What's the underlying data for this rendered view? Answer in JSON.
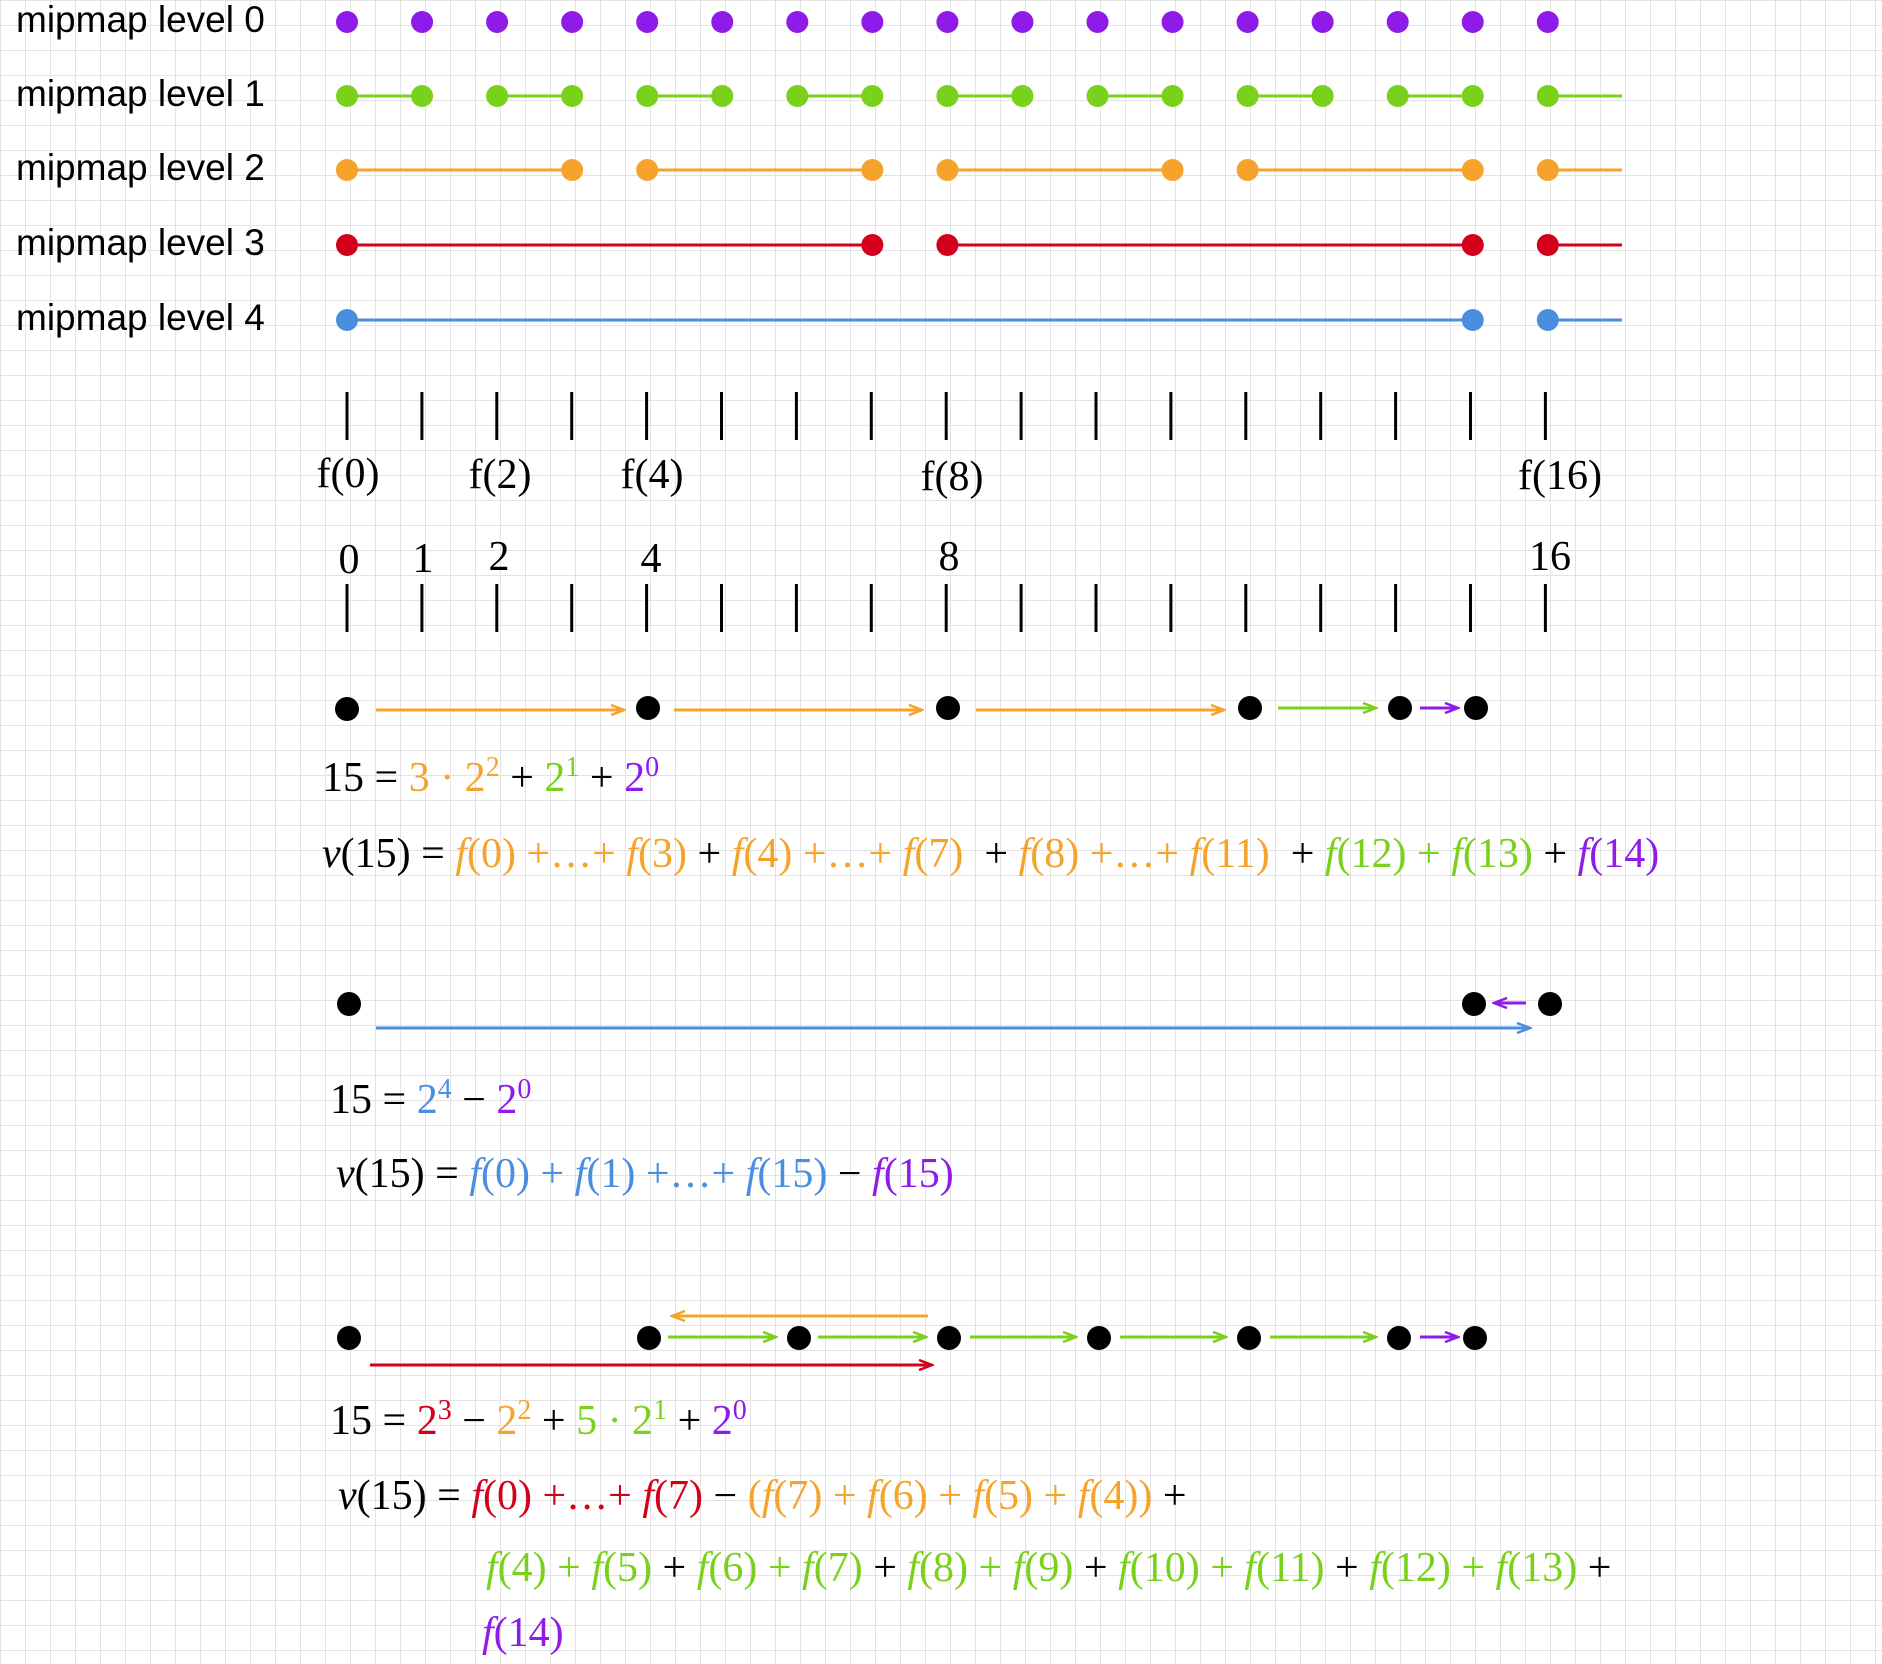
{
  "colors": {
    "purple": "#8f1be8",
    "green": "#79d11b",
    "orange": "#f5a32b",
    "red": "#d4001b",
    "blue": "#4a8ee0",
    "black": "#000000",
    "grid": "#e3e3e3"
  },
  "mipmap_levels": [
    {
      "label": "mipmap level 0",
      "color": "purple"
    },
    {
      "label": "mipmap level 1",
      "color": "green"
    },
    {
      "label": "mipmap level 2",
      "color": "orange"
    },
    {
      "label": "mipmap level 3",
      "color": "red"
    },
    {
      "label": "mipmap level 4",
      "color": "blue"
    }
  ],
  "function_labels": [
    "f(0)",
    "f(2)",
    "f(4)",
    "f(8)",
    "f(16)"
  ],
  "index_labels": [
    "0",
    "1",
    "2",
    "4",
    "8",
    "16"
  ],
  "decompositions": [
    {
      "eq1": [
        {
          "t": "15 = ",
          "c": "black"
        },
        {
          "t": "3 · 2",
          "c": "orange"
        },
        {
          "t": "2",
          "c": "orange",
          "sup": true
        },
        {
          "t": " + ",
          "c": "black"
        },
        {
          "t": "2",
          "c": "green"
        },
        {
          "t": "1",
          "c": "green",
          "sup": true
        },
        {
          "t": " + ",
          "c": "black"
        },
        {
          "t": "2",
          "c": "purple"
        },
        {
          "t": "0",
          "c": "purple",
          "sup": true
        }
      ],
      "eq2": [
        [
          {
            "t": "v",
            "c": "black",
            "i": true
          },
          {
            "t": "(15) = ",
            "c": "black"
          },
          {
            "t": "f",
            "c": "orange",
            "i": true
          },
          {
            "t": "(0) +…+ ",
            "c": "orange"
          },
          {
            "t": "f",
            "c": "orange",
            "i": true
          },
          {
            "t": "(3)",
            "c": "orange"
          },
          {
            "t": " + ",
            "c": "black"
          },
          {
            "t": "f",
            "c": "orange",
            "i": true
          },
          {
            "t": "(4) +…+ ",
            "c": "orange"
          },
          {
            "t": "f",
            "c": "orange",
            "i": true
          },
          {
            "t": "(7)",
            "c": "orange"
          },
          {
            "t": "  + ",
            "c": "black"
          },
          {
            "t": "f",
            "c": "orange",
            "i": true
          },
          {
            "t": "(8) +…+ ",
            "c": "orange"
          },
          {
            "t": "f",
            "c": "orange",
            "i": true
          },
          {
            "t": "(11)",
            "c": "orange"
          },
          {
            "t": "  + ",
            "c": "black"
          },
          {
            "t": "f",
            "c": "green",
            "i": true
          },
          {
            "t": "(12) + ",
            "c": "green"
          },
          {
            "t": "f",
            "c": "green",
            "i": true
          },
          {
            "t": "(13)",
            "c": "green"
          },
          {
            "t": " + ",
            "c": "black"
          },
          {
            "t": "f",
            "c": "purple",
            "i": true
          },
          {
            "t": "(14)",
            "c": "purple"
          }
        ]
      ]
    },
    {
      "eq1": [
        {
          "t": "15 = ",
          "c": "black"
        },
        {
          "t": "2",
          "c": "blue"
        },
        {
          "t": "4",
          "c": "blue",
          "sup": true
        },
        {
          "t": " − ",
          "c": "black"
        },
        {
          "t": "2",
          "c": "purple"
        },
        {
          "t": "0",
          "c": "purple",
          "sup": true
        }
      ],
      "eq2": [
        [
          {
            "t": "v",
            "c": "black",
            "i": true
          },
          {
            "t": "(15) = ",
            "c": "black"
          },
          {
            "t": "f",
            "c": "blue",
            "i": true
          },
          {
            "t": "(0) + ",
            "c": "blue"
          },
          {
            "t": "f",
            "c": "blue",
            "i": true
          },
          {
            "t": "(1) +…+ ",
            "c": "blue"
          },
          {
            "t": "f",
            "c": "blue",
            "i": true
          },
          {
            "t": "(15)",
            "c": "blue"
          },
          {
            "t": " − ",
            "c": "black"
          },
          {
            "t": "f",
            "c": "purple",
            "i": true
          },
          {
            "t": "(15)",
            "c": "purple"
          }
        ]
      ]
    },
    {
      "eq1": [
        {
          "t": "15 = ",
          "c": "black"
        },
        {
          "t": "2",
          "c": "red"
        },
        {
          "t": "3",
          "c": "red",
          "sup": true
        },
        {
          "t": " − ",
          "c": "black"
        },
        {
          "t": "2",
          "c": "orange"
        },
        {
          "t": "2",
          "c": "orange",
          "sup": true
        },
        {
          "t": " + ",
          "c": "black"
        },
        {
          "t": "5 · 2",
          "c": "green"
        },
        {
          "t": "1",
          "c": "green",
          "sup": true
        },
        {
          "t": " + ",
          "c": "black"
        },
        {
          "t": "2",
          "c": "purple"
        },
        {
          "t": "0",
          "c": "purple",
          "sup": true
        }
      ],
      "eq2": [
        [
          {
            "t": "v",
            "c": "black",
            "i": true
          },
          {
            "t": "(15) = ",
            "c": "black"
          },
          {
            "t": "f",
            "c": "red",
            "i": true
          },
          {
            "t": "(0) +…+ ",
            "c": "red"
          },
          {
            "t": "f",
            "c": "red",
            "i": true
          },
          {
            "t": "(7)",
            "c": "red"
          },
          {
            "t": " − ",
            "c": "black"
          },
          {
            "t": "(",
            "c": "orange"
          },
          {
            "t": "f",
            "c": "orange",
            "i": true
          },
          {
            "t": "(7) + ",
            "c": "orange"
          },
          {
            "t": "f",
            "c": "orange",
            "i": true
          },
          {
            "t": "(6) + ",
            "c": "orange"
          },
          {
            "t": "f",
            "c": "orange",
            "i": true
          },
          {
            "t": "(5) + ",
            "c": "orange"
          },
          {
            "t": "f",
            "c": "orange",
            "i": true
          },
          {
            "t": "(4))",
            "c": "orange"
          },
          {
            "t": " +",
            "c": "black"
          }
        ],
        [
          {
            "t": "f",
            "c": "green",
            "i": true
          },
          {
            "t": "(4) + ",
            "c": "green"
          },
          {
            "t": "f",
            "c": "green",
            "i": true
          },
          {
            "t": "(5)",
            "c": "green"
          },
          {
            "t": " + ",
            "c": "black"
          },
          {
            "t": "f",
            "c": "green",
            "i": true
          },
          {
            "t": "(6) + ",
            "c": "green"
          },
          {
            "t": "f",
            "c": "green",
            "i": true
          },
          {
            "t": "(7)",
            "c": "green"
          },
          {
            "t": " + ",
            "c": "black"
          },
          {
            "t": "f",
            "c": "green",
            "i": true
          },
          {
            "t": "(8) + ",
            "c": "green"
          },
          {
            "t": "f",
            "c": "green",
            "i": true
          },
          {
            "t": "(9)",
            "c": "green"
          },
          {
            "t": " + ",
            "c": "black"
          },
          {
            "t": "f",
            "c": "green",
            "i": true
          },
          {
            "t": "(10) + ",
            "c": "green"
          },
          {
            "t": "f",
            "c": "green",
            "i": true
          },
          {
            "t": "(11)",
            "c": "green"
          },
          {
            "t": " + ",
            "c": "black"
          },
          {
            "t": "f",
            "c": "green",
            "i": true
          },
          {
            "t": "(12) + ",
            "c": "green"
          },
          {
            "t": "f",
            "c": "green",
            "i": true
          },
          {
            "t": "(13)",
            "c": "green"
          },
          {
            "t": " +",
            "c": "black"
          }
        ],
        [
          {
            "t": "f",
            "c": "purple",
            "i": true
          },
          {
            "t": "(14)",
            "c": "purple"
          }
        ]
      ]
    }
  ]
}
